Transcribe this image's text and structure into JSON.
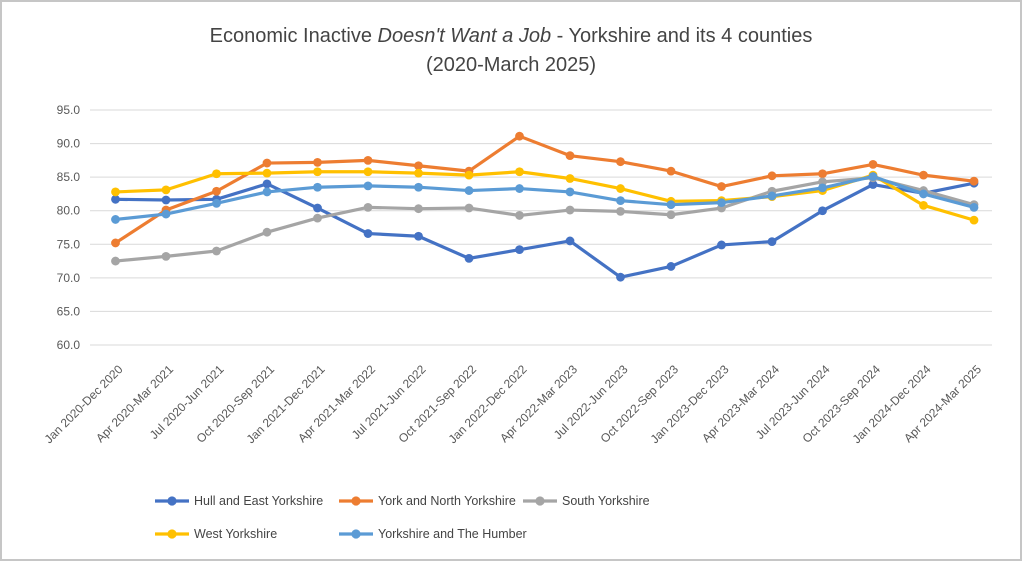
{
  "title": {
    "part1": "Economic Inactive ",
    "italic": "Doesn't Want a Job",
    "part3": " - Yorkshire and its 4 counties",
    "line2": "(2020-March 2025)"
  },
  "colors": {
    "background": "#FFFFFF",
    "border": "#C6C6C6",
    "grid": "#D9D9D9",
    "axis_text": "#595959",
    "title_text": "#444444",
    "legend_text": "#444444"
  },
  "chart_data": {
    "type": "line",
    "title": "Economic Inactive Doesn't Want a Job - Yorkshire and its 4 counties (2020-March 2025)",
    "xlabel": "",
    "ylabel": "",
    "ylim": [
      60,
      95
    ],
    "ytick_step": 5,
    "ytick_format_decimals": 1,
    "grid": true,
    "legend_position": "bottom",
    "legend_rows": [
      [
        0,
        1,
        2
      ],
      [
        3,
        4
      ]
    ],
    "categories": [
      "Jan 2020-Dec 2020",
      "Apr 2020-Mar 2021",
      "Jul 2020-Jun 2021",
      "Oct 2020-Sep 2021",
      "Jan 2021-Dec 2021",
      "Apr 2021-Mar 2022",
      "Jul 2021-Jun 2022",
      "Oct 2021-Sep 2022",
      "Jan 2022-Dec 2022",
      "Apr 2022-Mar 2023",
      "Jul 2022-Jun 2023",
      "Oct 2022-Sep 2023",
      "Jan 2023-Dec 2023",
      "Apr 2023-Mar 2024",
      "Jul 2023-Jun 2024",
      "Oct 2023-Sep 2024",
      "Jan 2024-Dec 2024",
      "Apr 2024-Mar 2025"
    ],
    "series": [
      {
        "name": "Hull and East Yorkshire",
        "color": "#4472C4",
        "values": [
          81.7,
          81.6,
          81.7,
          84.0,
          80.4,
          76.6,
          76.2,
          72.9,
          74.2,
          75.5,
          70.1,
          71.7,
          74.9,
          75.4,
          80.0,
          83.9,
          82.6,
          84.1
        ]
      },
      {
        "name": "York and North Yorkshire",
        "color": "#ED7D31",
        "values": [
          75.2,
          80.1,
          82.9,
          87.1,
          87.2,
          87.5,
          86.7,
          85.9,
          91.1,
          88.2,
          87.3,
          85.9,
          83.6,
          85.2,
          85.5,
          86.9,
          85.3,
          84.4
        ]
      },
      {
        "name": "South Yorkshire",
        "color": "#A5A5A5",
        "values": [
          72.5,
          73.2,
          74.0,
          76.8,
          78.9,
          80.5,
          80.3,
          80.4,
          79.3,
          80.1,
          79.9,
          79.4,
          80.4,
          82.9,
          84.3,
          84.9,
          83.0,
          80.9
        ]
      },
      {
        "name": "West Yorkshire",
        "color": "#FFC000",
        "values": [
          82.8,
          83.1,
          85.5,
          85.6,
          85.8,
          85.8,
          85.6,
          85.3,
          85.8,
          84.8,
          83.3,
          81.4,
          81.5,
          82.1,
          83.0,
          85.3,
          80.8,
          78.6
        ]
      },
      {
        "name": "Yorkshire and The Humber",
        "color": "#5B9BD5",
        "values": [
          78.7,
          79.5,
          81.1,
          82.8,
          83.5,
          83.7,
          83.5,
          83.0,
          83.3,
          82.8,
          81.5,
          80.9,
          81.2,
          82.2,
          83.4,
          85.1,
          82.5,
          80.5
        ]
      }
    ]
  }
}
